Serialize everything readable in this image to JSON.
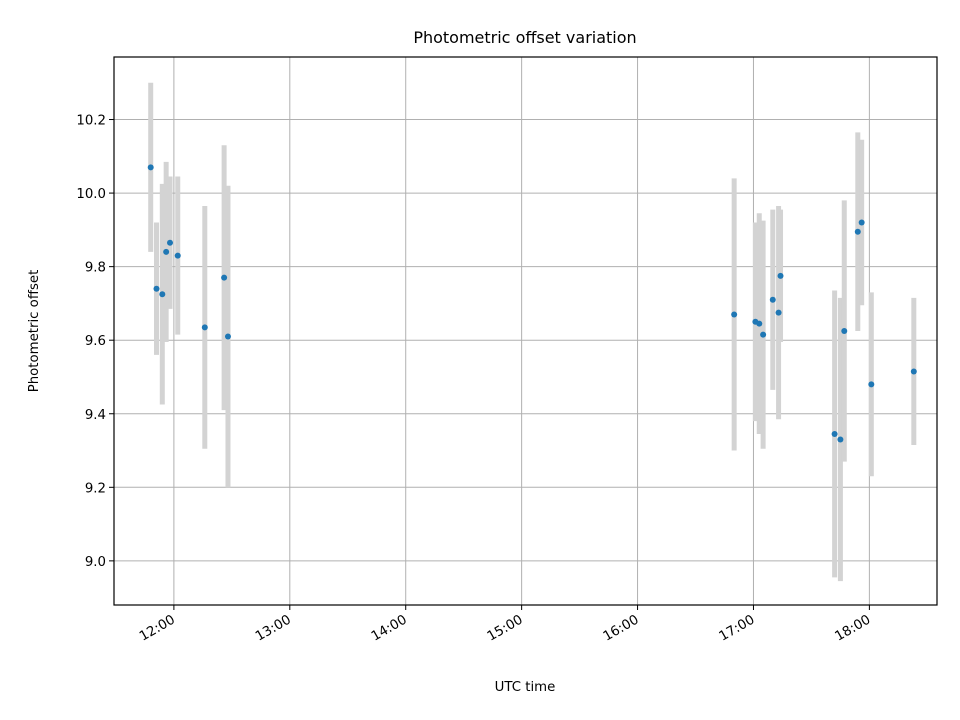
{
  "chart_data": {
    "type": "scatter",
    "title": "Photometric offset variation",
    "xlabel": "UTC time",
    "ylabel": "Photometric offset",
    "x_ticks": [
      "12:00",
      "13:00",
      "14:00",
      "15:00",
      "16:00",
      "17:00",
      "18:00"
    ],
    "y_ticks": [
      "9.0",
      "9.2",
      "9.4",
      "9.6",
      "9.8",
      "10.0",
      "10.2"
    ],
    "xlim": [
      "11:29",
      "18:35"
    ],
    "ylim": [
      8.88,
      10.37
    ],
    "grid": true,
    "colors": {
      "point": "#1f77b4",
      "errorbar": "#d3d3d3",
      "grid": "#b0b0b0"
    },
    "series": [
      {
        "points": [
          {
            "x": "11:48",
            "y": 10.07,
            "yerr": 0.23
          },
          {
            "x": "11:51",
            "y": 9.74,
            "yerr": 0.18
          },
          {
            "x": "11:54",
            "y": 9.725,
            "yerr": 0.3
          },
          {
            "x": "11:56",
            "y": 9.84,
            "yerr": 0.245
          },
          {
            "x": "11:58",
            "y": 9.865,
            "yerr": 0.18
          },
          {
            "x": "12:02",
            "y": 9.83,
            "yerr": 0.215
          },
          {
            "x": "12:16",
            "y": 9.635,
            "yerr": 0.33
          },
          {
            "x": "12:26",
            "y": 9.77,
            "yerr": 0.36
          },
          {
            "x": "12:28",
            "y": 9.61,
            "yerr": 0.41
          },
          {
            "x": "16:50",
            "y": 9.67,
            "yerr": 0.37
          },
          {
            "x": "17:01",
            "y": 9.65,
            "yerr": 0.27
          },
          {
            "x": "17:03",
            "y": 9.645,
            "yerr": 0.3
          },
          {
            "x": "17:05",
            "y": 9.615,
            "yerr": 0.31
          },
          {
            "x": "17:10",
            "y": 9.71,
            "yerr": 0.245
          },
          {
            "x": "17:13",
            "y": 9.675,
            "yerr": 0.29
          },
          {
            "x": "17:14",
            "y": 9.775,
            "yerr": 0.18
          },
          {
            "x": "17:42",
            "y": 9.345,
            "yerr": 0.39
          },
          {
            "x": "17:45",
            "y": 9.33,
            "yerr": 0.385
          },
          {
            "x": "17:47",
            "y": 9.625,
            "yerr": 0.355
          },
          {
            "x": "17:54",
            "y": 9.895,
            "yerr": 0.27
          },
          {
            "x": "17:56",
            "y": 9.92,
            "yerr": 0.225
          },
          {
            "x": "18:01",
            "y": 9.48,
            "yerr": 0.25
          },
          {
            "x": "18:23",
            "y": 9.515,
            "yerr": 0.2
          }
        ]
      }
    ]
  }
}
